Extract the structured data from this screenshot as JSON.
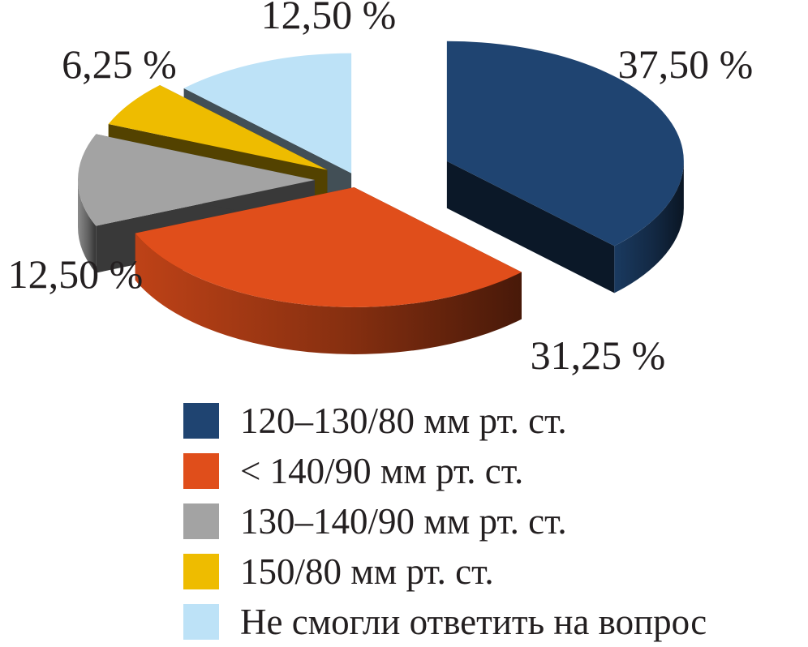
{
  "chart_data": {
    "type": "pie",
    "title": "",
    "style": "3d-exploded",
    "legend_position": "bottom",
    "slices": [
      {
        "label": "120–130/80 мм рт. ст.",
        "value": 37.5,
        "value_label": "37,50 %",
        "color": "#1f4471"
      },
      {
        "label": "< 140/90 мм рт. ст.",
        "value": 31.25,
        "value_label": "31,25 %",
        "color": "#e04e1b"
      },
      {
        "label": "130–140/90 мм рт. ст.",
        "value": 12.5,
        "value_label": "12,50 %",
        "color": "#a3a3a3"
      },
      {
        "label": "150/80 мм рт. ст.",
        "value": 6.25,
        "value_label": "6,25 %",
        "color": "#eebc00"
      },
      {
        "label": "Не смогли ответить на вопрос",
        "value": 12.5,
        "value_label": "12,50 %",
        "color": "#bde2f7"
      }
    ]
  }
}
